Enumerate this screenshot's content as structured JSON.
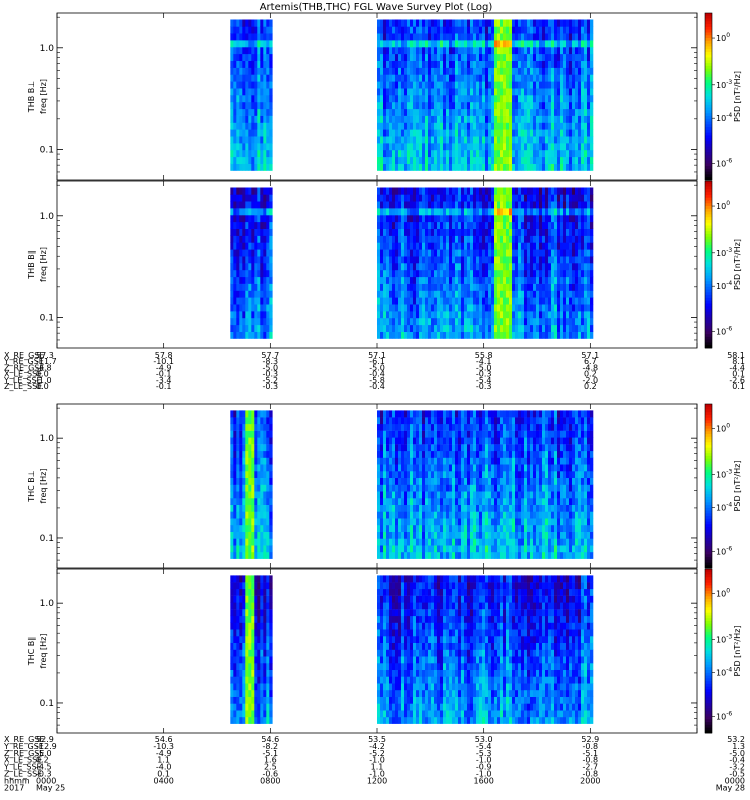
{
  "title": "Artemis(THB,THC) FGL Wave Survey Plot (Log)",
  "colors": {
    "cmap": [
      "#000000",
      "#3a0060",
      "#2000a8",
      "#0000ff",
      "#0050ff",
      "#00a0ff",
      "#00e0e0",
      "#00ff80",
      "#80ff00",
      "#ffff00",
      "#ffa000",
      "#ff2000",
      "#c00000"
    ]
  },
  "colorbar": {
    "label": "PSD [nT²/Hz]",
    "ticks": [
      {
        "base": "10",
        "exp": "0",
        "frac": 0.15
      },
      {
        "base": "10",
        "exp": "-3",
        "frac": 0.43
      },
      {
        "base": "10",
        "exp": "-4",
        "frac": 0.63
      },
      {
        "base": "10",
        "exp": "-6",
        "frac": 0.9
      }
    ]
  },
  "panels": [
    {
      "label1": "THB B⊥",
      "label2": "freq [Hz]"
    },
    {
      "label1": "THB B∥",
      "label2": "freq [Hz]"
    },
    {
      "label1": "THC B⊥",
      "label2": "freq [Hz]"
    },
    {
      "label1": "THC B∥",
      "label2": "freq [Hz]"
    }
  ],
  "yticks": [
    {
      "label": "1.0",
      "value": 1.0
    },
    {
      "label": "0.1",
      "value": 0.1
    }
  ],
  "orbit_top": {
    "names": [
      "X_RE_GSE",
      "Y_RE_GSE",
      "Z_RE_GSE",
      "X_LE_SSE",
      "Y_LE_SSE",
      "Z_LE_SSE"
    ],
    "columns": [
      [
        "57.3",
        "-11.7",
        "-4.8",
        "0.0",
        "-1.0",
        "0.0"
      ],
      [
        "57.8",
        "-10.1",
        "-4.9",
        "-0.1",
        "-3.4",
        "-0.1"
      ],
      [
        "57.7",
        "-8.3",
        "-5.0",
        "-0.3",
        "-5.2",
        "-0.3"
      ],
      [
        "57.1",
        "-6.1",
        "-5.0",
        "-0.4",
        "-5.8",
        "-0.4"
      ],
      [
        "55.8",
        "-4.1",
        "-5.0",
        "-0.3",
        "-5.4",
        "-0.3"
      ],
      [
        "57.1",
        "6.7",
        "-4.8",
        "0.2",
        "-2.0",
        "0.2"
      ],
      [
        "58.1",
        "8.1",
        "-4.4",
        "0.1",
        "-2.6",
        "0.1"
      ]
    ]
  },
  "orbit_bottom": {
    "names": [
      "X_RE_GSE",
      "Y_RE_GSE",
      "Z_RE_GSE",
      "X_LE_SSE",
      "Y_LE_SSE",
      "Z_LE_SSE",
      "hhmm",
      "2017"
    ],
    "columns": [
      [
        "52.9",
        "-12.9",
        "-5.0",
        "0.2",
        "-4.5",
        "-0.3",
        "0000",
        "May 25"
      ],
      [
        "54.6",
        "-10.3",
        "-4.9",
        "1.1",
        "-4.0",
        "0.1",
        "0400",
        ""
      ],
      [
        "54.6",
        "-8.2",
        "-5.1",
        "1.6",
        "2.5",
        "-0.6",
        "0800",
        ""
      ],
      [
        "53.5",
        "-4.2",
        "-5.2",
        "-1.0",
        "1.1",
        "-1.0",
        "1200",
        ""
      ],
      [
        "53.0",
        "-5.4",
        "-5.3",
        "-1.0",
        "-0.9",
        "-1.0",
        "1600",
        ""
      ],
      [
        "52.9",
        "-0.8",
        "-5.1",
        "-0.8",
        "-2.7",
        "-0.8",
        "2000",
        ""
      ],
      [
        "53.2",
        "1.3",
        "-5.0",
        "-0.4",
        "-3.2",
        "-0.5",
        "0000",
        "May 28"
      ]
    ]
  },
  "chart_data": {
    "type": "heatmap",
    "title": "Artemis(THB,THC) FGL Wave Survey Plot (Log)",
    "x_unit": "hhmm",
    "x_ticks": [
      "0000",
      "0400",
      "0800",
      "1200",
      "1600",
      "2000",
      "0000"
    ],
    "x_range_hhmm": [
      "0000",
      "0000"
    ],
    "ylim_hz": [
      0.05,
      2.2
    ],
    "yscale": "log",
    "colorbar_label": "PSD [nT²/Hz]",
    "colorbar_scale": "log",
    "series": [
      {
        "name": "THB B⊥",
        "data_intervals_hhmm": [
          [
            "0630",
            "0800"
          ],
          [
            "1200",
            "2000"
          ]
        ],
        "bright_band_hhmm": [
          "1620",
          "1700"
        ]
      },
      {
        "name": "THB B∥",
        "data_intervals_hhmm": [
          [
            "0630",
            "0800"
          ],
          [
            "1200",
            "2000"
          ]
        ],
        "bright_band_hhmm": [
          "1620",
          "1700"
        ]
      },
      {
        "name": "THC B⊥",
        "data_intervals_hhmm": [
          [
            "0630",
            "0800"
          ],
          [
            "1200",
            "2000"
          ]
        ],
        "bright_band_hhmm": [
          "0700",
          "0720"
        ]
      },
      {
        "name": "THC B∥",
        "data_intervals_hhmm": [
          [
            "0630",
            "0800"
          ],
          [
            "1200",
            "2000"
          ]
        ],
        "bright_band_hhmm": [
          "0700",
          "0720"
        ]
      }
    ]
  }
}
